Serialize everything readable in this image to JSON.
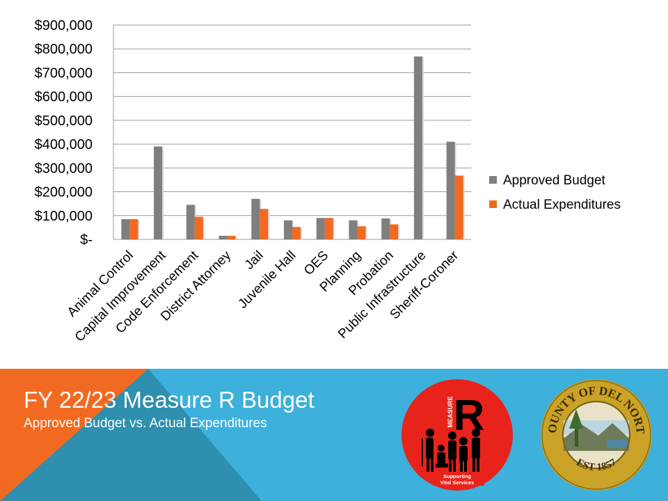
{
  "chart_data": {
    "type": "bar",
    "title": "",
    "xlabel": "",
    "ylabel": "",
    "categories": [
      "Animal Control",
      "Capital Improvement",
      "Code Enforcement",
      "District Attorney",
      "Jail",
      "Juvenile Hall",
      "OES",
      "Planning",
      "Probation",
      "Public Infrastructure",
      "Sheriff-Coroner"
    ],
    "series": [
      {
        "name": "Approved Budget",
        "color": "#7f7f7f",
        "values": [
          85000,
          390000,
          145000,
          15000,
          170000,
          80000,
          90000,
          80000,
          88000,
          768000,
          410000
        ]
      },
      {
        "name": "Actual Expenditures",
        "color": "#f26a21",
        "values": [
          85000,
          0,
          95000,
          15000,
          128000,
          52000,
          90000,
          55000,
          63000,
          0,
          268000
        ]
      }
    ],
    "ylim": [
      0,
      900000
    ],
    "yticks": [
      0,
      100000,
      200000,
      300000,
      400000,
      500000,
      600000,
      700000,
      800000,
      900000
    ],
    "ytick_labels": [
      "$-",
      "$100,000",
      "$200,000",
      "$300,000",
      "$400,000",
      "$500,000",
      "$600,000",
      "$700,000",
      "$800,000",
      "$900,000"
    ],
    "grid": true,
    "legend": "right"
  },
  "footer": {
    "title": "FY 22/23 Measure R Budget",
    "subtitle": "Approved Budget vs. Actual Expenditures",
    "colors": {
      "band": "#3db0dc",
      "orange": "#f26a21",
      "teal": "#2f8fae"
    }
  },
  "measure_logo": {
    "word_measure": "MEASURE",
    "letter": "R",
    "caption_line1": "Supporting",
    "caption_line2": "Vital Services",
    "color": "#e8231b"
  },
  "county_seal": {
    "top_text": "COUNTY OF DEL NORTE",
    "bottom_text": "EST 1857",
    "color": "#c9a227"
  }
}
